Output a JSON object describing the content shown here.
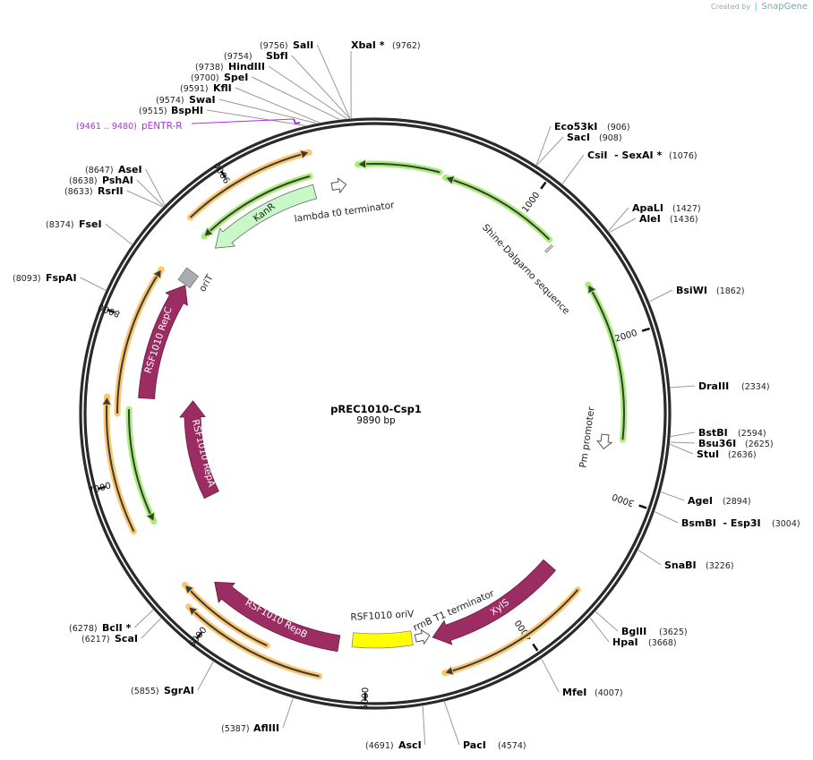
{
  "watermark": {
    "prefix": "Created by",
    "brand": "SnapGene"
  },
  "plasmid": {
    "name": "pREC1010-Csp1",
    "length_label": "9890 bp",
    "length_bp": 9890
  },
  "ticks": [
    "1000",
    "2000",
    "3000",
    "4000",
    "5000",
    "6000",
    "7000",
    "8000",
    "9000"
  ],
  "primer": {
    "range": "(9461 .. 9480)",
    "name": "pENTR-R",
    "color": "#b030e0"
  },
  "features": {
    "kanr": "KanR",
    "lambda": "lambda t0 terminator",
    "shine": "Shine-Dalgarno sequence",
    "pm": "Pm promoter",
    "xyls": "XylS",
    "rrnb": "rrnB T1 terminator",
    "oriv": "RSF1010 oriV",
    "repb": "RSF1010 RepB",
    "repc": "RSF1010 RepC",
    "orit": "oriT",
    "repa": "RSF1010 RepA"
  },
  "colors": {
    "cds": "#9b2d63",
    "orange": "#fcc66e",
    "green": "#a8ee78",
    "kanr": "#c8f8c8",
    "oriv": "#ffff00",
    "orit": "#a8adb4"
  },
  "enzymes": [
    {
      "name": "Eco53kI",
      "site": "(906)"
    },
    {
      "name": "SacI",
      "site": "(908)"
    },
    {
      "name": "CsiI  - SexAI *",
      "site": "(1076)"
    },
    {
      "name": "ApaLI",
      "site": "(1427)"
    },
    {
      "name": "AleI",
      "site": "(1436)"
    },
    {
      "name": "BsiWI",
      "site": "(1862)"
    },
    {
      "name": "DraIII",
      "site": "(2334)"
    },
    {
      "name": "BstBI",
      "site": "(2594)"
    },
    {
      "name": "Bsu36I",
      "site": "(2625)"
    },
    {
      "name": "StuI",
      "site": "(2636)"
    },
    {
      "name": "AgeI",
      "site": "(2894)"
    },
    {
      "name": "BsmBI  - Esp3I",
      "site": "(3004)"
    },
    {
      "name": "SnaBI",
      "site": "(3226)"
    },
    {
      "name": "BglII",
      "site": "(3625)"
    },
    {
      "name": "HpaI",
      "site": "(3668)"
    },
    {
      "name": "MfeI",
      "site": "(4007)"
    },
    {
      "name": "PacI",
      "site": "(4574)"
    },
    {
      "name": "AscI",
      "site": "(4691)"
    },
    {
      "name": "AflIII",
      "site": "(5387)"
    },
    {
      "name": "SgrAI",
      "site": "(5855)"
    },
    {
      "name": "ScaI",
      "site": "(6217)"
    },
    {
      "name": "BclI *",
      "site": "(6278)"
    },
    {
      "name": "FspAI",
      "site": "(8093)"
    },
    {
      "name": "FseI",
      "site": "(8374)"
    },
    {
      "name": "RsrII",
      "site": "(8633)"
    },
    {
      "name": "PshAI",
      "site": "(8638)"
    },
    {
      "name": "AseI",
      "site": "(8647)"
    },
    {
      "name": "BspHI",
      "site": "(9515)"
    },
    {
      "name": "SwaI",
      "site": "(9574)"
    },
    {
      "name": "KflI",
      "site": "(9591)"
    },
    {
      "name": "SpeI",
      "site": "(9700)"
    },
    {
      "name": "HindIII",
      "site": "(9738)"
    },
    {
      "name": "SbfI",
      "site": "(9754)"
    },
    {
      "name": "SalI",
      "site": "(9756)"
    },
    {
      "name": "XbaI *",
      "site": "(9762)"
    }
  ]
}
